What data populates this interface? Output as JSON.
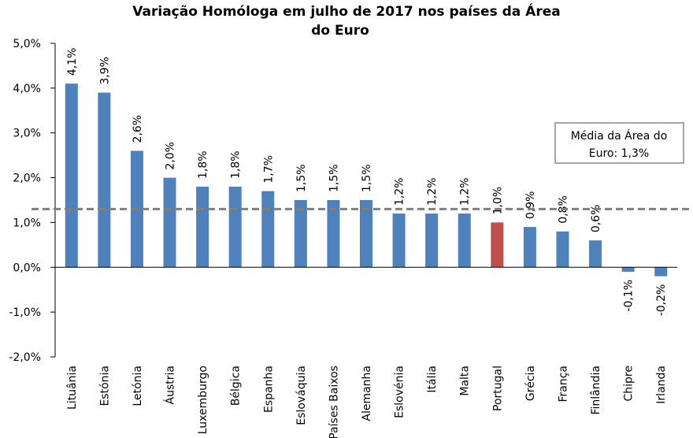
{
  "chart_data": {
    "type": "bar",
    "title_lines": [
      "Variação Homóloga em julho de 2017 nos países da Área",
      "do Euro"
    ],
    "categories": [
      "Lituânia",
      "Estónia",
      "Letónia",
      "Áustria",
      "Luxemburgo",
      "Bélgica",
      "Espanha",
      "Eslováquia",
      "Países Baixos",
      "Alemanha",
      "Eslovénia",
      "Itália",
      "Malta",
      "Portugal",
      "Grécia",
      "França",
      "Finlândia",
      "Chipre",
      "Irlanda"
    ],
    "values": [
      4.1,
      3.9,
      2.6,
      2.0,
      1.8,
      1.8,
      1.7,
      1.5,
      1.5,
      1.5,
      1.2,
      1.2,
      1.2,
      1.0,
      0.9,
      0.8,
      0.6,
      -0.1,
      -0.2
    ],
    "data_labels": [
      "4,1%",
      "3,9%",
      "2,6%",
      "2,0%",
      "1,8%",
      "1,8%",
      "1,7%",
      "1,5%",
      "1,5%",
      "1,5%",
      "1,2%",
      "1,2%",
      "1,2%",
      "1,0%",
      "0,9%",
      "0,8%",
      "0,6%",
      "-0,1%",
      "-0,2%"
    ],
    "highlight_category": "Portugal",
    "ylim": [
      -2.0,
      5.0
    ],
    "yticks": [
      5.0,
      4.0,
      3.0,
      2.0,
      1.0,
      0.0,
      -1.0,
      -2.0
    ],
    "ytick_labels": [
      "5,0%",
      "4,0%",
      "3,0%",
      "2,0%",
      "1,0%",
      "0,0%",
      "-1,0%",
      "-2,0%"
    ],
    "reference_line": {
      "value": 1.3
    },
    "annotation_lines": [
      "Média da Área  do",
      "Euro: 1,3%"
    ],
    "xlabel": "",
    "ylabel": "",
    "colors": {
      "bar": "#4F81BD",
      "highlight": "#C0504D",
      "reference": "#808080",
      "axis": "#000000"
    }
  }
}
